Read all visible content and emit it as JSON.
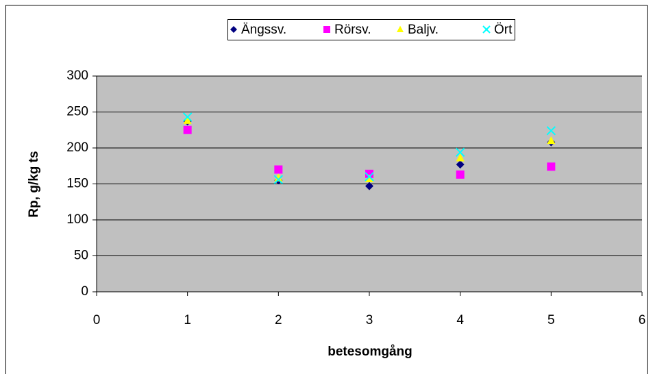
{
  "chart_data": {
    "type": "scatter",
    "x_label": "betesomgång",
    "y_label": "Rp, g/kg ts",
    "xlim": [
      0,
      6
    ],
    "xticks": [
      0,
      1,
      2,
      3,
      4,
      5,
      6
    ],
    "ylim": [
      0,
      300
    ],
    "yticks": [
      0,
      50,
      100,
      150,
      200,
      250,
      300
    ],
    "grid": true,
    "legend": "top",
    "series": [
      {
        "name": "Ängssv.",
        "color": "#000080",
        "marker": "diamond",
        "x": [
          1,
          2,
          3,
          4,
          5
        ],
        "values": [
          237,
          155,
          147,
          177,
          208
        ]
      },
      {
        "name": "Rörsv.",
        "color": "#ff00ff",
        "marker": "square",
        "x": [
          1,
          2,
          3,
          4,
          5
        ],
        "values": [
          225,
          170,
          164,
          163,
          174
        ]
      },
      {
        "name": "Baljv.",
        "color": "#ffff00",
        "marker": "triangle",
        "x": [
          1,
          2,
          3,
          4,
          5
        ],
        "values": [
          238,
          158,
          157,
          186,
          210
        ]
      },
      {
        "name": "Ört",
        "color": "#00ffff",
        "marker": "x",
        "x": [
          1,
          2,
          3,
          4,
          5
        ],
        "values": [
          243,
          156,
          160,
          194,
          224
        ]
      }
    ]
  }
}
